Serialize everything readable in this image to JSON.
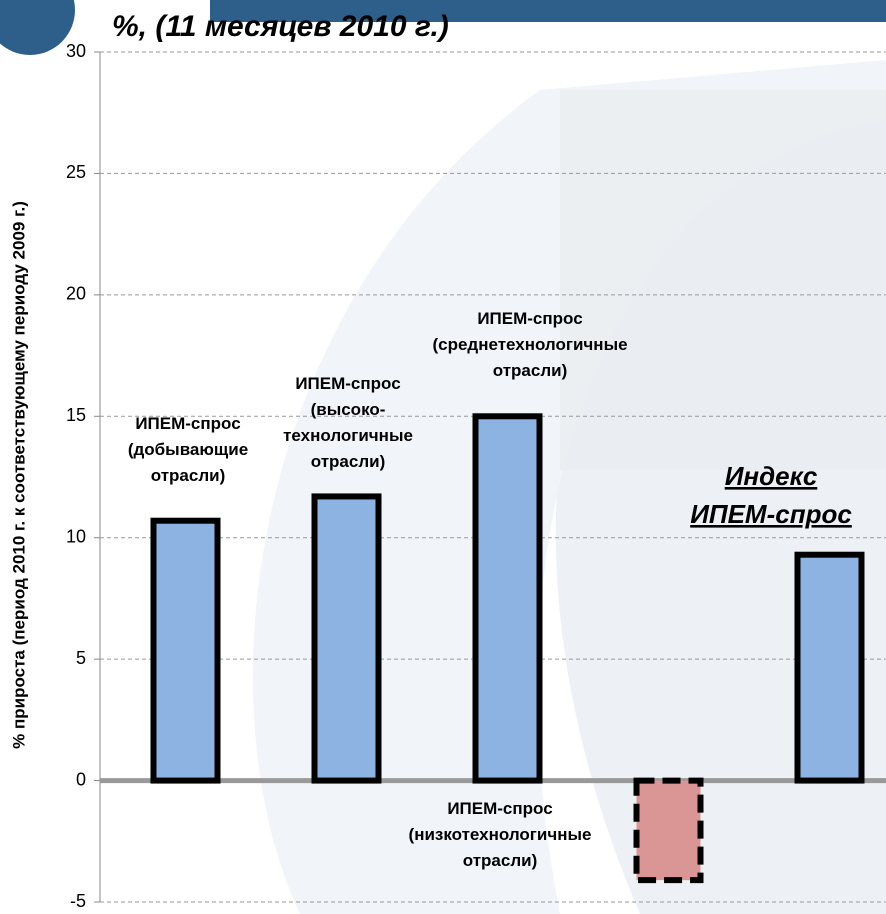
{
  "chart_data": {
    "type": "bar",
    "title": "%,  (11 месяцев 2010 г.)",
    "y_axis_label": "% прироста (период 2010 г. к соответствующему периоду 2009 г.)",
    "categories": [
      "ИПЕМ-спрос\n(добывающие\nотрасли)",
      "ИПЕМ-спрос\n(высоко-\nтехнологичные\nотрасли)",
      "ИПЕМ-спрос\n(среднетехнологичные\nотрасли)",
      "ИПЕМ-спрос\n(низкотехнологичные\nотрасли)",
      "Индекс\nИПЕМ-спрос"
    ],
    "values": [
      10.7,
      11.7,
      15.0,
      -4.1,
      9.3
    ],
    "colors": [
      "#8db3e2",
      "#8db3e2",
      "#8db3e2",
      "#d99694",
      "#8db3e2"
    ],
    "border_styles": [
      "solid",
      "solid",
      "solid",
      "dashed",
      "solid"
    ],
    "ylim": [
      -5,
      30
    ],
    "yticks": [
      -5,
      0,
      5,
      10,
      15,
      20,
      25,
      30
    ],
    "grid": true
  }
}
